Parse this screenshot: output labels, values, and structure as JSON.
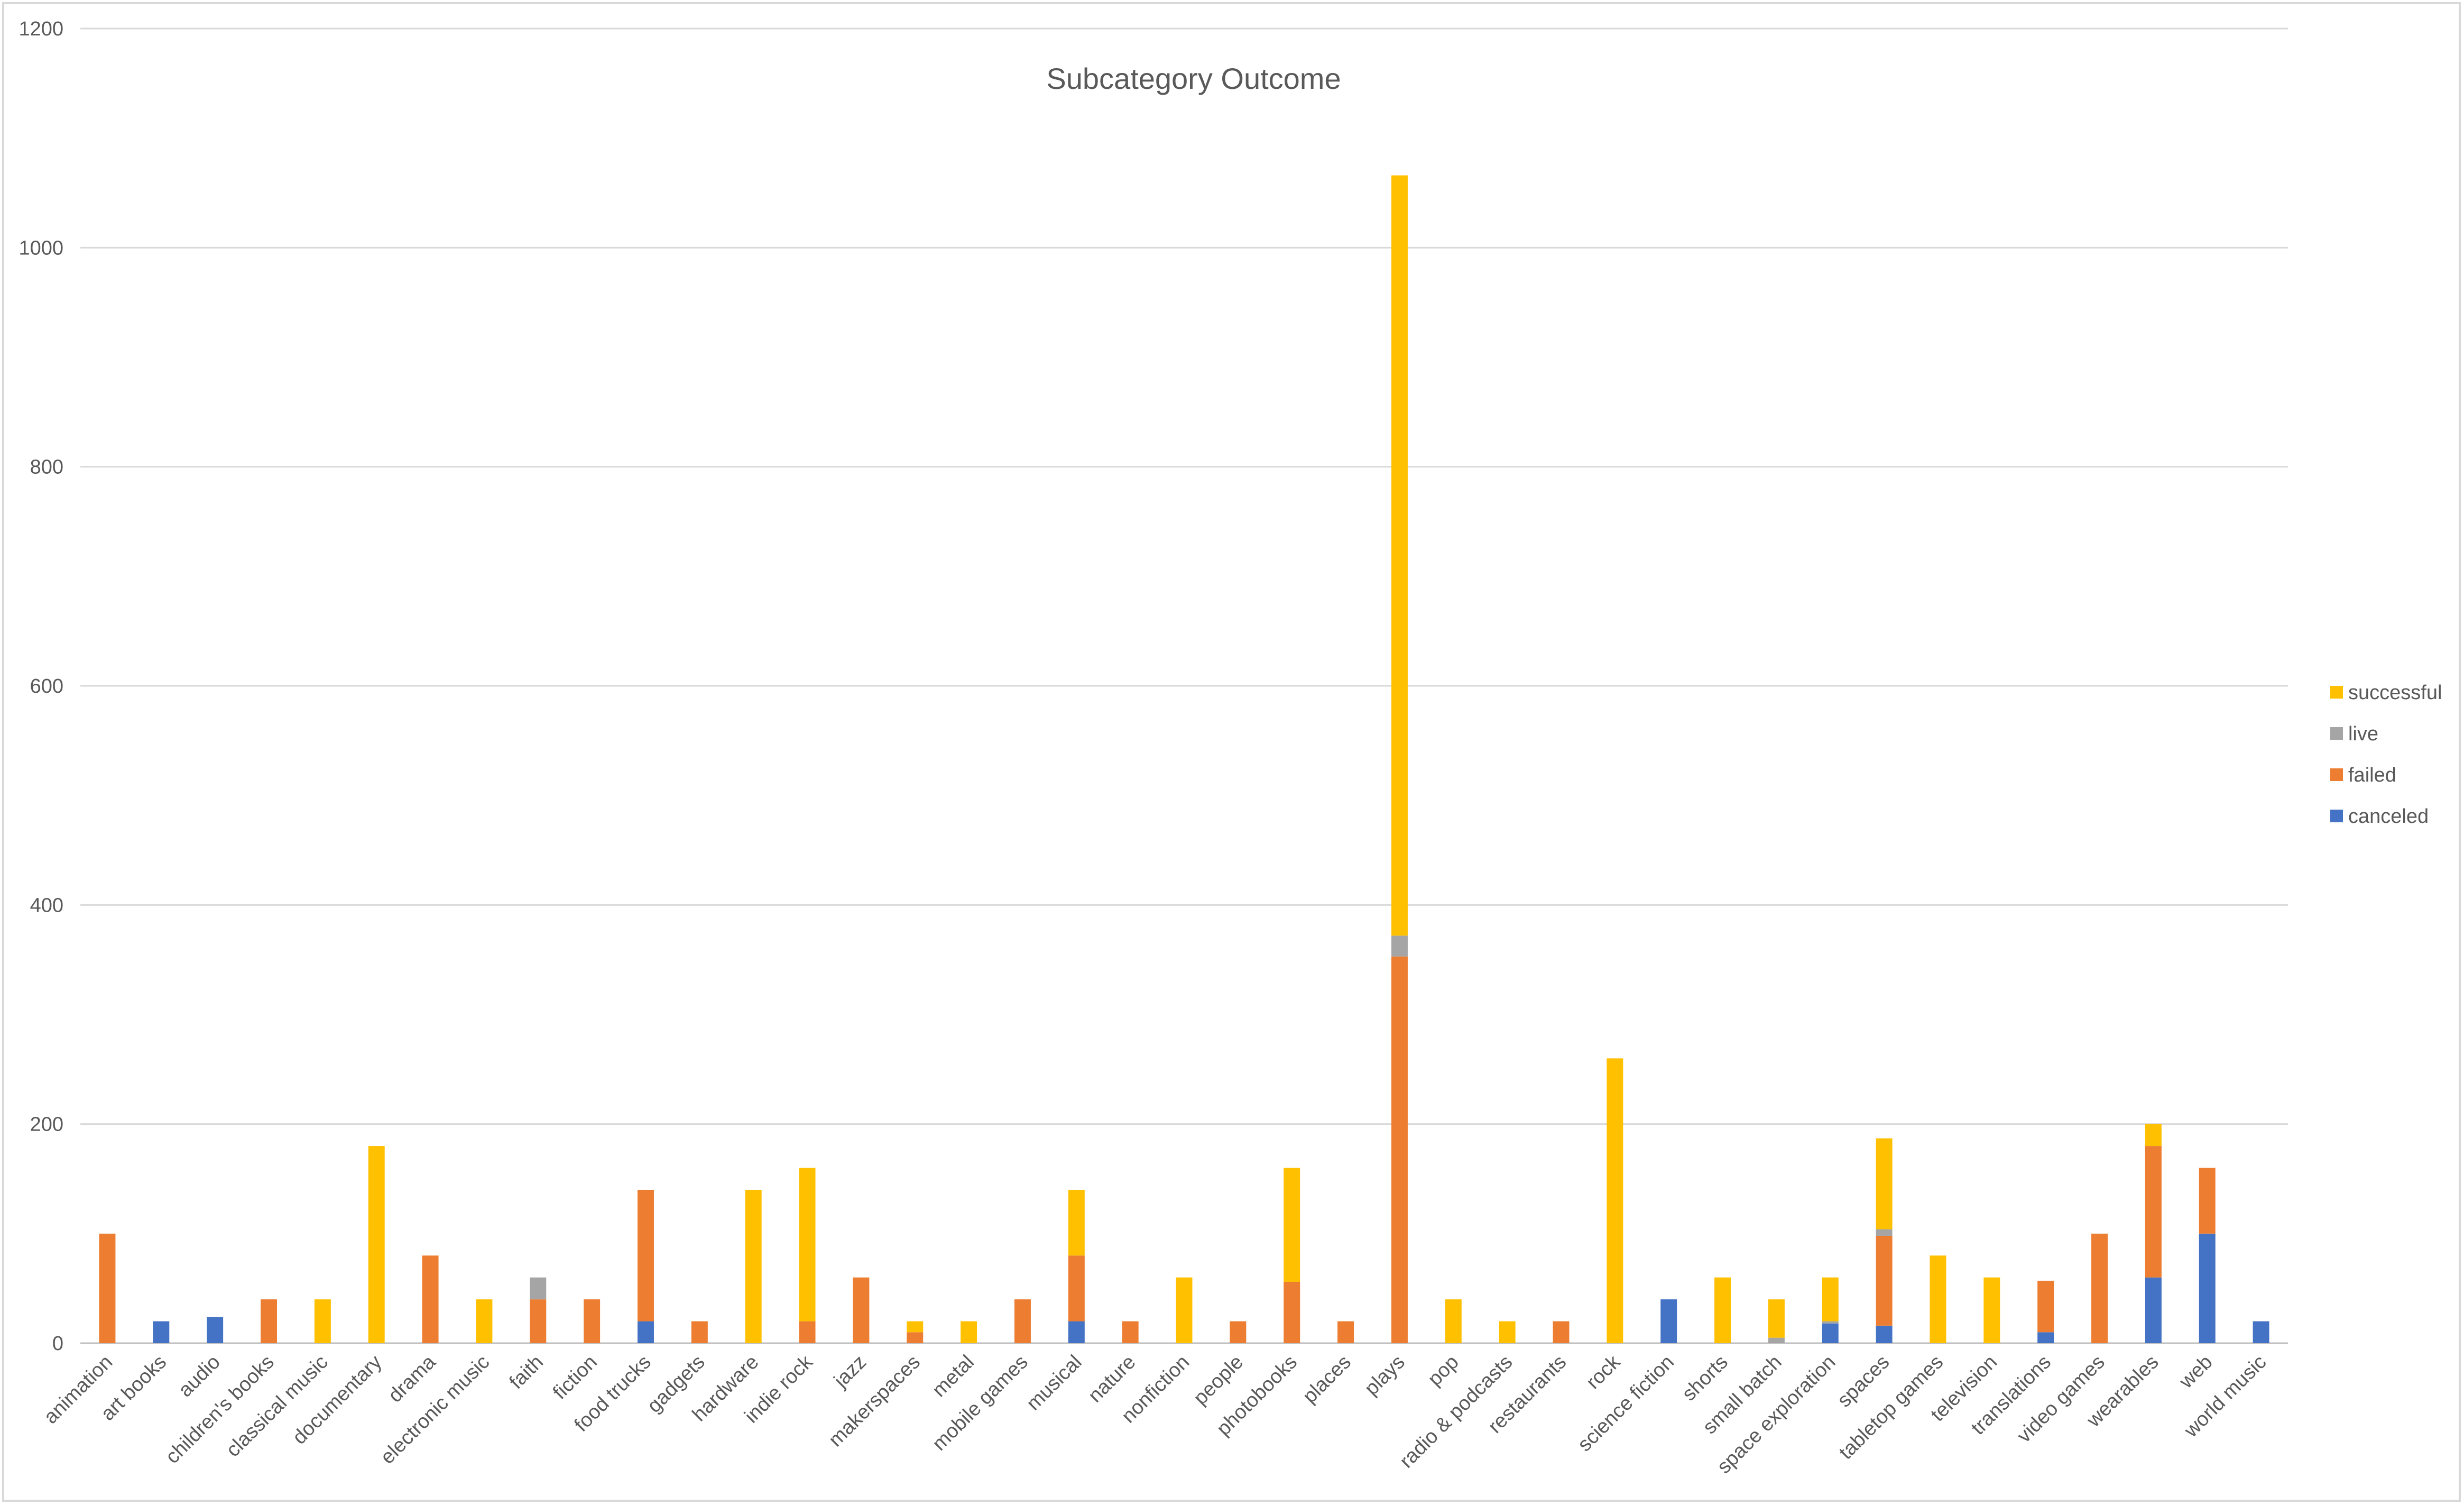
{
  "chart_data": {
    "type": "bar",
    "stacked": true,
    "title": "Subcategory Outcome",
    "xlabel": "",
    "ylabel": "",
    "ylim": [
      0,
      1200
    ],
    "yticks": [
      0,
      200,
      400,
      600,
      800,
      1000,
      1200
    ],
    "grid": true,
    "legend_position": "right",
    "categories": [
      "animation",
      "art books",
      "audio",
      "children's books",
      "classical music",
      "documentary",
      "drama",
      "electronic music",
      "faith",
      "fiction",
      "food trucks",
      "gadgets",
      "hardware",
      "indie rock",
      "jazz",
      "makerspaces",
      "metal",
      "mobile games",
      "musical",
      "nature",
      "nonfiction",
      "people",
      "photobooks",
      "places",
      "plays",
      "pop",
      "radio & podcasts",
      "restaurants",
      "rock",
      "science fiction",
      "shorts",
      "small batch",
      "space exploration",
      "spaces",
      "tabletop games",
      "television",
      "translations",
      "video games",
      "wearables",
      "web",
      "world music"
    ],
    "series": [
      {
        "name": "canceled",
        "color": "#4472c4",
        "values": [
          0,
          20,
          24,
          0,
          0,
          0,
          0,
          0,
          0,
          0,
          20,
          0,
          0,
          0,
          0,
          0,
          0,
          0,
          20,
          0,
          0,
          0,
          0,
          0,
          0,
          0,
          0,
          0,
          0,
          40,
          0,
          0,
          18,
          16,
          0,
          0,
          10,
          0,
          60,
          100,
          20
        ]
      },
      {
        "name": "failed",
        "color": "#ed7d31",
        "values": [
          100,
          0,
          0,
          40,
          0,
          0,
          80,
          0,
          40,
          40,
          120,
          20,
          0,
          20,
          60,
          10,
          0,
          40,
          60,
          20,
          0,
          20,
          56,
          20,
          353,
          0,
          0,
          20,
          0,
          0,
          0,
          0,
          0,
          82,
          0,
          0,
          47,
          100,
          120,
          60,
          0
        ]
      },
      {
        "name": "live",
        "color": "#a5a5a5",
        "values": [
          0,
          0,
          0,
          0,
          0,
          0,
          0,
          0,
          20,
          0,
          0,
          0,
          0,
          0,
          0,
          0,
          0,
          0,
          0,
          0,
          0,
          0,
          0,
          0,
          19,
          0,
          0,
          0,
          0,
          0,
          0,
          5,
          2,
          6,
          0,
          0,
          0,
          0,
          0,
          0,
          0
        ]
      },
      {
        "name": "successful",
        "color": "#ffc000",
        "values": [
          0,
          0,
          0,
          0,
          40,
          180,
          0,
          40,
          0,
          0,
          0,
          0,
          140,
          140,
          0,
          10,
          20,
          0,
          60,
          0,
          60,
          0,
          104,
          0,
          694,
          40,
          20,
          0,
          260,
          0,
          60,
          35,
          40,
          83,
          80,
          60,
          0,
          0,
          20,
          0,
          0
        ]
      }
    ],
    "legend_order": [
      "successful",
      "live",
      "failed",
      "canceled"
    ]
  }
}
